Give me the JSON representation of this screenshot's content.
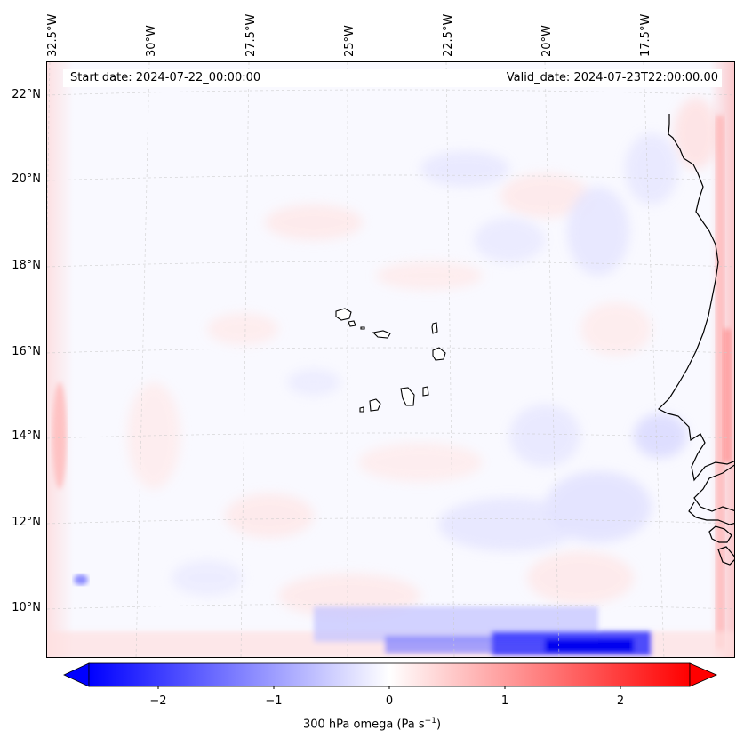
{
  "map": {
    "start_date": "Start date: 2024-07-22_00:00:00",
    "valid_date": "Valid_date: 2024-07-23T22:00:00.00",
    "lon_labels": [
      "32.5°W",
      "30°W",
      "27.5°W",
      "25°W",
      "22.5°W",
      "20°W",
      "17.5°W"
    ],
    "lat_labels": [
      "22°N",
      "20°N",
      "18°N",
      "16°N",
      "14°N",
      "12°N",
      "10°N"
    ],
    "coastline_color": "#000000",
    "positive_color": "#ff0000",
    "negative_color": "#0000ff"
  },
  "colorbar": {
    "ticks": [
      "−2",
      "−1",
      "0",
      "1",
      "2"
    ],
    "tick_values": [
      -2,
      -1,
      0,
      1,
      2
    ],
    "range": [
      -2.6,
      2.6
    ],
    "title": "300 hPa omega (Pa s",
    "title_sup": "−1",
    "title_end": ")"
  }
}
